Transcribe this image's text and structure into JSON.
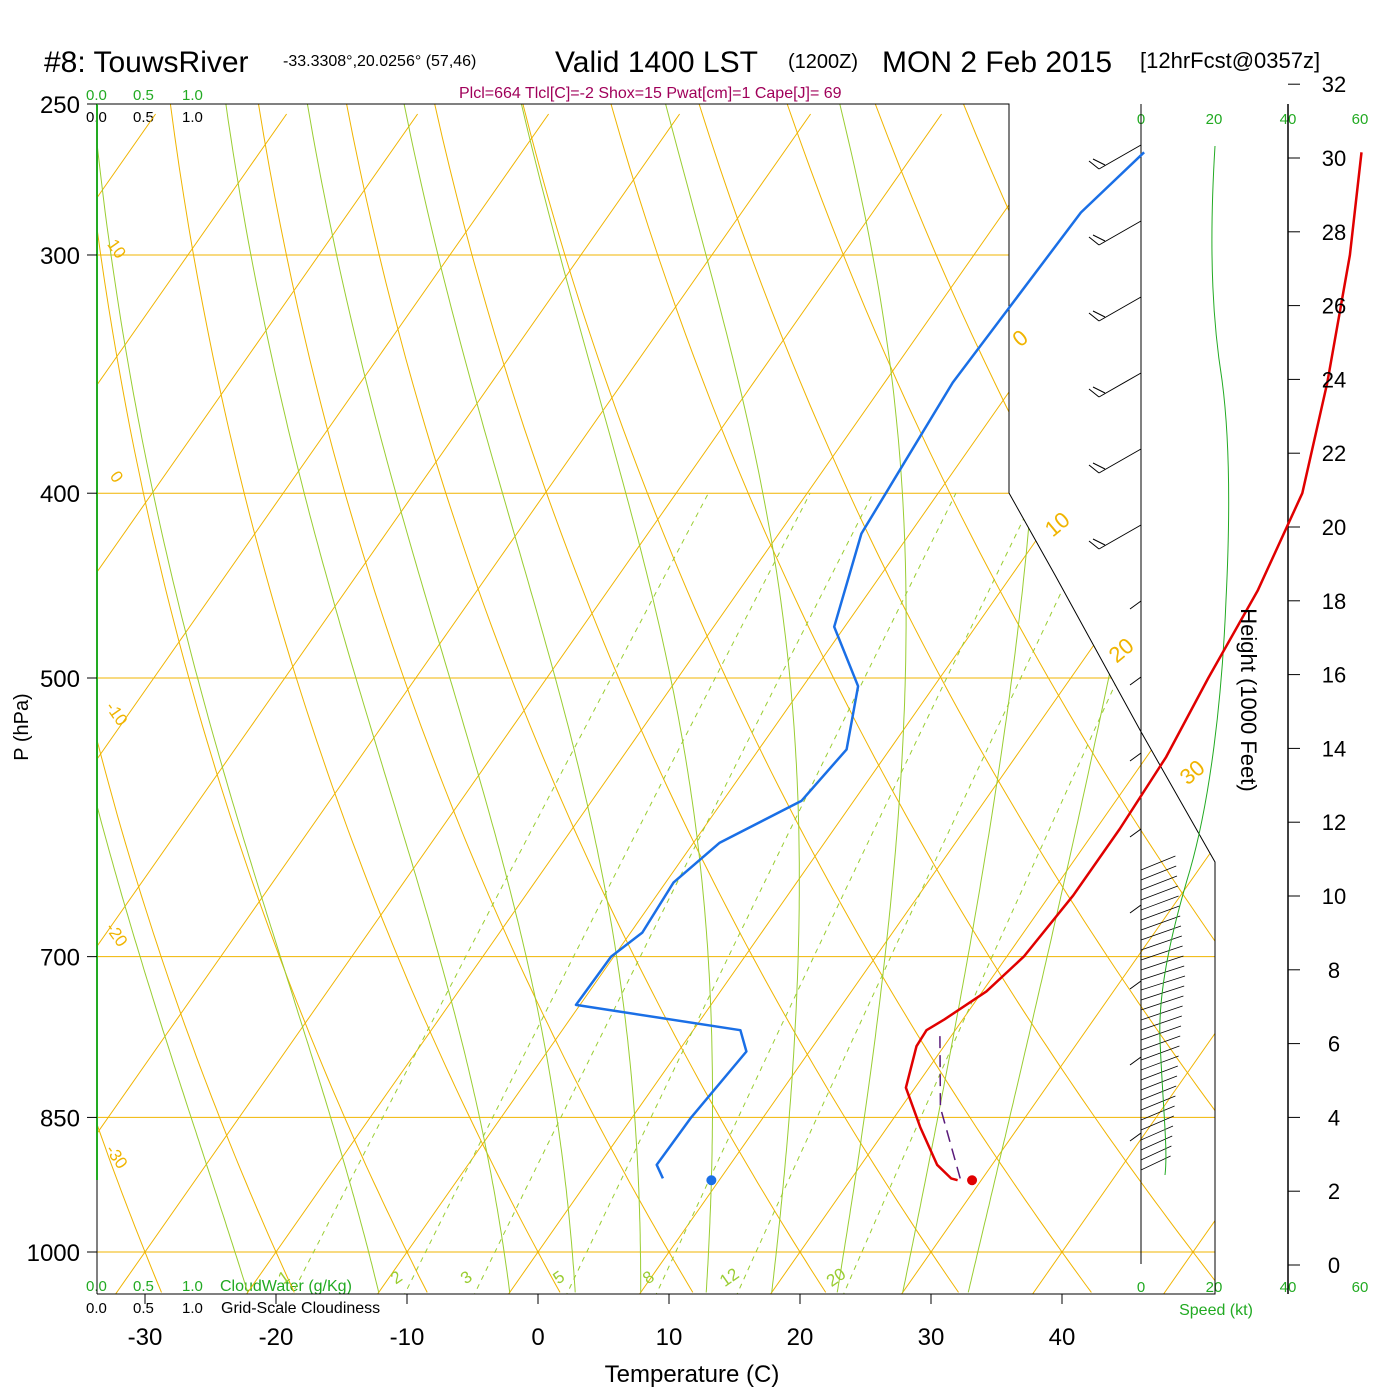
{
  "header": {
    "station": "#8: TouwsRiver",
    "coords": "-33.3308°,20.0256° (57,46)",
    "valid": "Valid 1400 LST",
    "utc": "(1200Z)",
    "date": "MON 2 Feb 2015",
    "forecast": "[12hrFcst@0357z]",
    "indices": "Plcl=664 Tlcl[C]=-2 Shox=15 Pwat[cm]=1 Cape[J]= 69"
  },
  "colors": {
    "isotherm": "#f0b400",
    "dry_adiabat": "#f0b400",
    "moist_adiabat": "#9acd32",
    "mixing_ratio": "#9acd32",
    "temperature": "#e00000",
    "dewpoint": "#1a6fe6",
    "parcel": "#5a1a7a",
    "indices_text": "#a0005a",
    "green_text": "#22aa22",
    "wind_speed": "#22aa22"
  },
  "axis_labels": {
    "x": "Temperature (C)",
    "y_left": "P (hPa)",
    "y_right": "Height (1000 Feet)",
    "wind_speed": "Speed (kt)"
  },
  "cloud_legend": {
    "water_scale_top": [
      "0.0",
      "0.5",
      "1.0"
    ],
    "cover_scale_top": [
      "0.0",
      "0.5",
      "1.0"
    ],
    "water_scale_bottom": [
      "0.0",
      "0.5",
      "1.0"
    ],
    "cover_scale_bottom": [
      "0.0",
      "0.5",
      "1.0"
    ],
    "water_label": "CloudWater (g/Kg)",
    "cover_label": "Grid-Scale Cloudiness"
  },
  "wind_speed_scale": {
    "top": [
      "0",
      "20",
      "40",
      "60"
    ],
    "bottom": [
      "0",
      "20",
      "40",
      "60"
    ]
  },
  "chart_data": {
    "type": "line",
    "temperature_ticks": [
      "-30",
      "-20",
      "-10",
      "0",
      "10",
      "20",
      "30",
      "40"
    ],
    "pressure_ticks": [
      "250",
      "300",
      "400",
      "500",
      "700",
      "850",
      "1000"
    ],
    "height_ticks": [
      "0",
      "2",
      "4",
      "6",
      "8",
      "10",
      "12",
      "14",
      "16",
      "18",
      "20",
      "22",
      "24",
      "26",
      "28",
      "30",
      "32"
    ],
    "dry_adiabat_labels": [
      "10",
      "0",
      "-10",
      "-20",
      "-30"
    ],
    "moist_adiabat_labels": [
      "0",
      "10",
      "20",
      "30"
    ],
    "mixing_ratio_labels": [
      "1",
      "2",
      "3",
      "5",
      "8",
      "12",
      "20"
    ],
    "series": [
      {
        "key": "temperature",
        "points": [
          {
            "p": 265,
            "t": 4.1
          },
          {
            "p": 300,
            "t": 8.7
          },
          {
            "p": 350,
            "t": 13.8
          },
          {
            "p": 400,
            "t": 17.8
          },
          {
            "p": 450,
            "t": 19.6
          },
          {
            "p": 500,
            "t": 20.5
          },
          {
            "p": 550,
            "t": 21.5
          },
          {
            "p": 600,
            "t": 21.8
          },
          {
            "p": 650,
            "t": 21.8
          },
          {
            "p": 700,
            "t": 21.3
          },
          {
            "p": 730,
            "t": 20.3
          },
          {
            "p": 755,
            "t": 18.6
          },
          {
            "p": 765,
            "t": 17.8
          },
          {
            "p": 780,
            "t": 17.9
          },
          {
            "p": 820,
            "t": 19.3
          },
          {
            "p": 860,
            "t": 22.5
          },
          {
            "p": 900,
            "t": 25.8
          },
          {
            "p": 915,
            "t": 27.6
          },
          {
            "p": 917,
            "t": 28.2
          }
        ]
      },
      {
        "key": "dewpoint",
        "points": [
          {
            "p": 265,
            "t": -12.5
          },
          {
            "p": 285,
            "t": -14.1
          },
          {
            "p": 350,
            "t": -14.8
          },
          {
            "p": 420,
            "t": -13.7
          },
          {
            "p": 470,
            "t": -10.8
          },
          {
            "p": 505,
            "t": -5.8
          },
          {
            "p": 545,
            "t": -3.3
          },
          {
            "p": 580,
            "t": -4.0
          },
          {
            "p": 610,
            "t": -8.0
          },
          {
            "p": 640,
            "t": -9.4
          },
          {
            "p": 680,
            "t": -9.1
          },
          {
            "p": 700,
            "t": -10.2
          },
          {
            "p": 742,
            "t": -10.3
          },
          {
            "p": 765,
            "t": 3.6
          },
          {
            "p": 785,
            "t": 5.2
          },
          {
            "p": 850,
            "t": 4.5
          },
          {
            "p": 900,
            "t": 4.4
          },
          {
            "p": 915,
            "t": 5.6
          }
        ]
      },
      {
        "key": "parcel",
        "points": [
          {
            "p": 915,
            "t": 28.3
          },
          {
            "p": 840,
            "t": 23.0
          },
          {
            "p": 768,
            "t": 19.0
          }
        ]
      }
    ],
    "surface_temperature": {
      "p": 917,
      "t": 29.3
    },
    "surface_dewpoint": {
      "p": 917,
      "t": 9.4
    }
  }
}
